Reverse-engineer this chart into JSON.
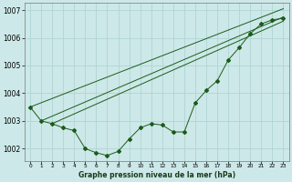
{
  "x": [
    0,
    1,
    2,
    3,
    4,
    5,
    6,
    7,
    8,
    9,
    10,
    11,
    12,
    13,
    14,
    15,
    16,
    17,
    18,
    19,
    20,
    21,
    22,
    23
  ],
  "line1": [
    1003.5,
    1003.0,
    1002.9,
    1002.75,
    1002.65,
    1002.0,
    1001.85,
    1001.75,
    1001.9,
    1002.35,
    1002.75,
    1002.9,
    1002.85,
    1002.6,
    1002.6,
    1003.65,
    1004.1,
    1004.45,
    1005.2,
    1005.65,
    1006.15,
    1006.5,
    1006.65,
    1006.7
  ],
  "straight_lines": [
    {
      "x0": 0,
      "y0": 1003.5,
      "x1": 23,
      "y1": 1007.05
    },
    {
      "x0": 1,
      "y0": 1003.0,
      "x1": 23,
      "y1": 1006.75
    },
    {
      "x0": 2,
      "y0": 1002.9,
      "x1": 23,
      "y1": 1006.6
    }
  ],
  "background_color": "#cde8e8",
  "grid_color": "#b0d4d4",
  "line_color": "#1a5c1a",
  "title": "Graphe pression niveau de la mer (hPa)",
  "ylim": [
    1001.55,
    1007.25
  ],
  "yticks": [
    1002,
    1003,
    1004,
    1005,
    1006,
    1007
  ],
  "xlim": [
    -0.5,
    23.5
  ],
  "markersize": 2.0,
  "linewidth": 0.7
}
